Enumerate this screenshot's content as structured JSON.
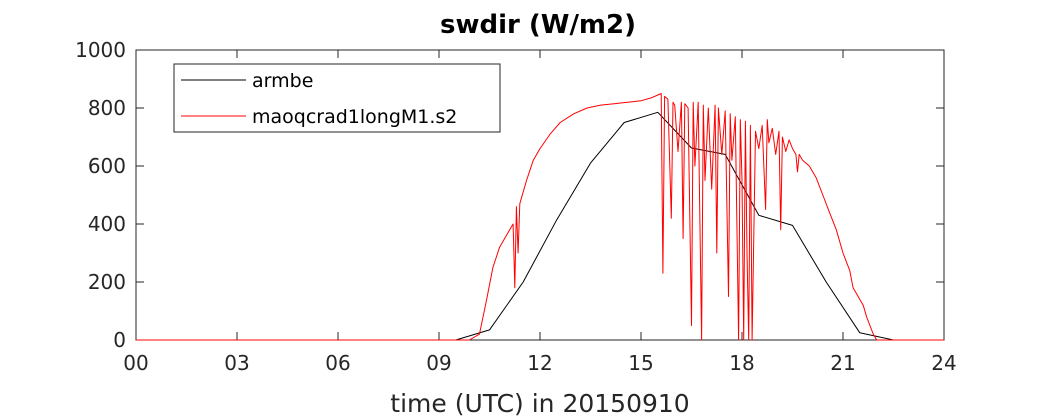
{
  "chart_data": {
    "type": "line",
    "title": "swdir  (W/m2)",
    "xlabel": "time (UTC) in 20150910",
    "ylabel": "",
    "xlim": [
      0,
      24
    ],
    "ylim": [
      0,
      1000
    ],
    "grid": false,
    "legend_position": "top-left",
    "x_ticks": [
      0,
      3,
      6,
      9,
      12,
      15,
      18,
      21,
      24
    ],
    "x_tick_labels": [
      "00",
      "03",
      "06",
      "09",
      "12",
      "15",
      "18",
      "21",
      "24"
    ],
    "y_ticks": [
      0,
      200,
      400,
      600,
      800,
      1000
    ],
    "y_tick_labels": [
      "0",
      "200",
      "400",
      "600",
      "800",
      "1000"
    ],
    "series": [
      {
        "name": "armbe",
        "color": "#000000",
        "x": [
          0,
          1,
          2,
          3,
          4,
          5,
          6,
          7,
          8,
          9,
          9.5,
          10.5,
          11.5,
          12.5,
          13.5,
          14.5,
          15.5,
          16.5,
          17.5,
          18.5,
          19.5,
          20.5,
          21.5,
          22.5,
          23,
          24
        ],
        "y": [
          0,
          0,
          0,
          0,
          0,
          0,
          0,
          0,
          0,
          0,
          0,
          35,
          200,
          415,
          610,
          750,
          785,
          662,
          640,
          430,
          395,
          200,
          25,
          0,
          0,
          0
        ]
      },
      {
        "name": "maoqcrad1longM1.s2",
        "color": "#ff0000",
        "x": [
          0,
          9.9,
          10.2,
          10.4,
          10.6,
          10.8,
          11.0,
          11.1,
          11.2,
          11.25,
          11.3,
          11.35,
          11.4,
          11.6,
          11.8,
          12.0,
          12.3,
          12.6,
          13.0,
          13.4,
          13.8,
          14.2,
          14.6,
          15.0,
          15.3,
          15.5,
          15.6,
          15.65,
          15.7,
          15.8,
          15.9,
          15.95,
          16.0,
          16.1,
          16.2,
          16.25,
          16.3,
          16.4,
          16.5,
          16.55,
          16.6,
          16.7,
          16.8,
          16.85,
          16.9,
          17.0,
          17.1,
          17.2,
          17.25,
          17.3,
          17.4,
          17.5,
          17.6,
          17.65,
          17.7,
          17.8,
          17.9,
          17.95,
          18.0,
          18.05,
          18.1,
          18.15,
          18.2,
          18.25,
          18.3,
          18.4,
          18.5,
          18.6,
          18.7,
          18.75,
          18.8,
          18.9,
          19.0,
          19.1,
          19.15,
          19.2,
          19.3,
          19.4,
          19.5,
          19.6,
          19.65,
          19.7,
          19.8,
          20.0,
          20.2,
          20.4,
          20.6,
          20.8,
          21.0,
          21.2,
          21.3,
          21.4,
          21.5,
          21.6,
          21.7,
          21.8,
          21.9,
          22.0,
          22.2,
          22.5,
          24
        ],
        "y": [
          0,
          0,
          20,
          130,
          250,
          320,
          360,
          380,
          400,
          180,
          460,
          300,
          470,
          550,
          620,
          660,
          710,
          750,
          780,
          800,
          810,
          815,
          820,
          825,
          835,
          845,
          850,
          230,
          840,
          830,
          420,
          820,
          810,
          650,
          820,
          350,
          815,
          800,
          50,
          820,
          600,
          820,
          0,
          810,
          550,
          800,
          520,
          810,
          300,
          800,
          640,
          790,
          150,
          780,
          620,
          770,
          0,
          760,
          550,
          0,
          755,
          300,
          0,
          740,
          0,
          720,
          660,
          740,
          450,
          760,
          680,
          730,
          640,
          720,
          380,
          700,
          650,
          690,
          660,
          640,
          580,
          640,
          620,
          600,
          560,
          500,
          440,
          380,
          300,
          240,
          180,
          160,
          140,
          120,
          80,
          50,
          20,
          0,
          0,
          0,
          0
        ]
      }
    ]
  }
}
